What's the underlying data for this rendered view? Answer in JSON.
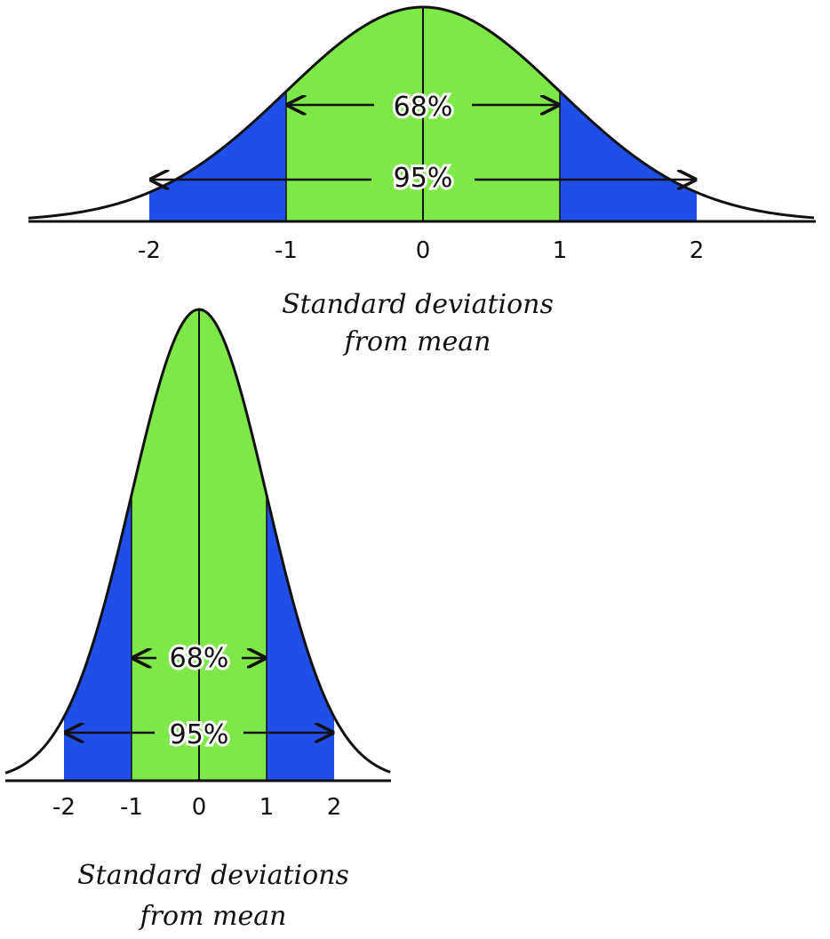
{
  "colors": {
    "band_1sd": "#7de847",
    "band_2sd": "#1f4fe8",
    "tail": "#ffffff",
    "ink": "#111111"
  },
  "chart_data": [
    {
      "type": "area",
      "distribution": "normal",
      "x_range": [
        -3,
        3
      ],
      "bands": [
        {
          "from": -1,
          "to": 1,
          "percent_label": "68%",
          "color": "#7de847"
        },
        {
          "from": -2,
          "to": 2,
          "percent_label": "95%",
          "color": "#1f4fe8"
        }
      ],
      "tick_values": [
        -2,
        -1,
        0,
        1,
        2
      ],
      "tick_labels": [
        "-2",
        "-1",
        "0",
        "1",
        "2"
      ],
      "xlabel_line1": "Standard deviations",
      "xlabel_line2": "from mean",
      "grid": false
    },
    {
      "type": "area",
      "distribution": "normal",
      "x_range": [
        -3,
        3
      ],
      "bands": [
        {
          "from": -1,
          "to": 1,
          "percent_label": "68%",
          "color": "#7de847"
        },
        {
          "from": -2,
          "to": 2,
          "percent_label": "95%",
          "color": "#1f4fe8"
        }
      ],
      "tick_values": [
        -2,
        -1,
        0,
        1,
        2
      ],
      "tick_labels": [
        "-2",
        "-1",
        "0",
        "1",
        "2"
      ],
      "xlabel_line1": "Standard deviations",
      "xlabel_line2": "from mean",
      "grid": false
    }
  ]
}
